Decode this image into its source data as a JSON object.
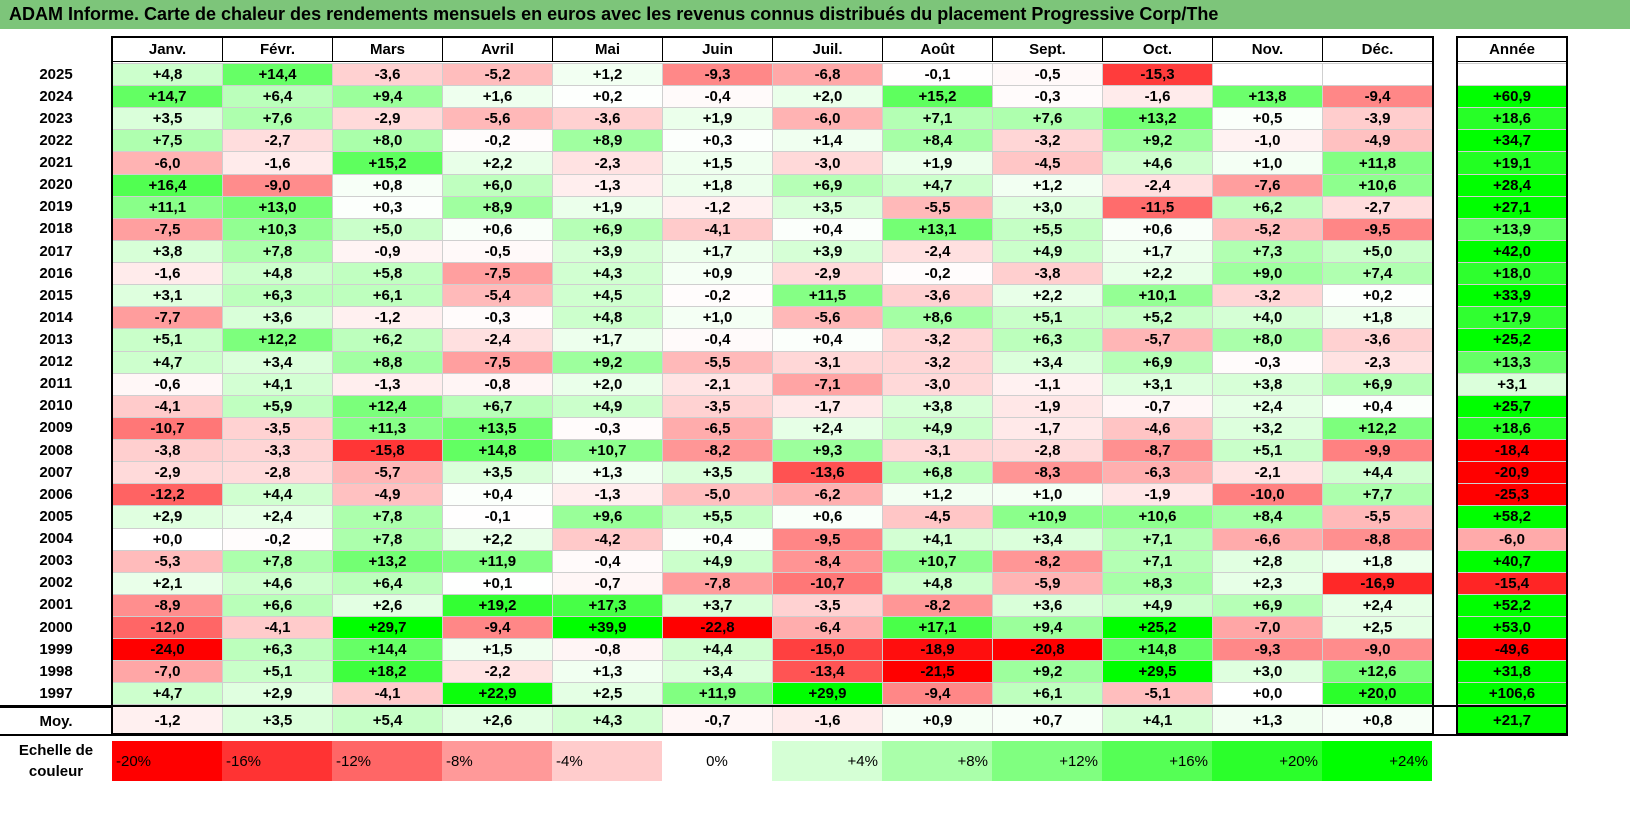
{
  "title": "ADAM Informe. Carte de chaleur des rendements mensuels en euros avec les revenus connus distribués du placement Progressive Corp/The",
  "chart_data": {
    "type": "heatmap",
    "months": [
      "Janv.",
      "Févr.",
      "Mars",
      "Avril",
      "Mai",
      "Juin",
      "Juil.",
      "Août",
      "Sept.",
      "Oct.",
      "Nov.",
      "Déc."
    ],
    "year_header": "Année",
    "rows": [
      {
        "label": "2025",
        "values": [
          "+4,8",
          "+14,4",
          "-3,6",
          "-5,2",
          "+1,2",
          "-9,3",
          "-6,8",
          "-0,1",
          "-0,5",
          "-15,3",
          "",
          ""
        ],
        "year": ""
      },
      {
        "label": "2024",
        "values": [
          "+14,7",
          "+6,4",
          "+9,4",
          "+1,6",
          "+0,2",
          "-0,4",
          "+2,0",
          "+15,2",
          "-0,3",
          "-1,6",
          "+13,8",
          "-9,4"
        ],
        "year": "+60,9"
      },
      {
        "label": "2023",
        "values": [
          "+3,5",
          "+7,6",
          "-2,9",
          "-5,6",
          "-3,6",
          "+1,9",
          "-6,0",
          "+7,1",
          "+7,6",
          "+13,2",
          "+0,5",
          "-3,9"
        ],
        "year": "+18,6"
      },
      {
        "label": "2022",
        "values": [
          "+7,5",
          "-2,7",
          "+8,0",
          "-0,2",
          "+8,9",
          "+0,3",
          "+1,4",
          "+8,4",
          "-3,2",
          "+9,2",
          "-1,0",
          "-4,9"
        ],
        "year": "+34,7"
      },
      {
        "label": "2021",
        "values": [
          "-6,0",
          "-1,6",
          "+15,2",
          "+2,2",
          "-2,3",
          "+1,5",
          "-3,0",
          "+1,9",
          "-4,5",
          "+4,6",
          "+1,0",
          "+11,8"
        ],
        "year": "+19,1"
      },
      {
        "label": "2020",
        "values": [
          "+16,4",
          "-9,0",
          "+0,8",
          "+6,0",
          "-1,3",
          "+1,8",
          "+6,9",
          "+4,7",
          "+1,2",
          "-2,4",
          "-7,6",
          "+10,6"
        ],
        "year": "+28,4"
      },
      {
        "label": "2019",
        "values": [
          "+11,1",
          "+13,0",
          "+0,3",
          "+8,9",
          "+1,9",
          "-1,2",
          "+3,5",
          "-5,5",
          "+3,0",
          "-11,5",
          "+6,2",
          "-2,7"
        ],
        "year": "+27,1"
      },
      {
        "label": "2018",
        "values": [
          "-7,5",
          "+10,3",
          "+5,0",
          "+0,6",
          "+6,9",
          "-4,1",
          "+0,4",
          "+13,1",
          "+5,5",
          "+0,6",
          "-5,2",
          "-9,5"
        ],
        "year": "+13,9"
      },
      {
        "label": "2017",
        "values": [
          "+3,8",
          "+7,8",
          "-0,9",
          "-0,5",
          "+3,9",
          "+1,7",
          "+3,9",
          "-2,4",
          "+4,9",
          "+1,7",
          "+7,3",
          "+5,0"
        ],
        "year": "+42,0"
      },
      {
        "label": "2016",
        "values": [
          "-1,6",
          "+4,8",
          "+5,8",
          "-7,5",
          "+4,3",
          "+0,9",
          "-2,9",
          "-0,2",
          "-3,8",
          "+2,2",
          "+9,0",
          "+7,4"
        ],
        "year": "+18,0"
      },
      {
        "label": "2015",
        "values": [
          "+3,1",
          "+6,3",
          "+6,1",
          "-5,4",
          "+4,5",
          "-0,2",
          "+11,5",
          "-3,6",
          "+2,2",
          "+10,1",
          "-3,2",
          "+0,2"
        ],
        "year": "+33,9"
      },
      {
        "label": "2014",
        "values": [
          "-7,7",
          "+3,6",
          "-1,2",
          "-0,3",
          "+4,8",
          "+1,0",
          "-5,6",
          "+8,6",
          "+5,1",
          "+5,2",
          "+4,0",
          "+1,8"
        ],
        "year": "+17,9"
      },
      {
        "label": "2013",
        "values": [
          "+5,1",
          "+12,2",
          "+6,2",
          "-2,4",
          "+1,7",
          "-0,4",
          "+0,4",
          "-3,2",
          "+6,3",
          "-5,7",
          "+8,0",
          "-3,6"
        ],
        "year": "+25,2"
      },
      {
        "label": "2012",
        "values": [
          "+4,7",
          "+3,4",
          "+8,8",
          "-7,5",
          "+9,2",
          "-5,5",
          "-3,1",
          "-3,2",
          "+3,4",
          "+6,9",
          "-0,3",
          "-2,3"
        ],
        "year": "+13,3"
      },
      {
        "label": "2011",
        "values": [
          "-0,6",
          "+4,1",
          "-1,3",
          "-0,8",
          "+2,0",
          "-2,1",
          "-7,1",
          "-3,0",
          "-1,1",
          "+3,1",
          "+3,8",
          "+6,9"
        ],
        "year": "+3,1"
      },
      {
        "label": "2010",
        "values": [
          "-4,1",
          "+5,9",
          "+12,4",
          "+6,7",
          "+4,9",
          "-3,5",
          "-1,7",
          "+3,8",
          "-1,9",
          "-0,7",
          "+2,4",
          "+0,4"
        ],
        "year": "+25,7"
      },
      {
        "label": "2009",
        "values": [
          "-10,7",
          "-3,5",
          "+11,3",
          "+13,5",
          "-0,3",
          "-6,5",
          "+2,4",
          "+4,9",
          "-1,7",
          "-4,6",
          "+3,2",
          "+12,2"
        ],
        "year": "+18,6"
      },
      {
        "label": "2008",
        "values": [
          "-3,8",
          "-3,3",
          "-15,8",
          "+14,8",
          "+10,7",
          "-8,2",
          "+9,3",
          "-3,1",
          "-2,8",
          "-8,7",
          "+5,1",
          "-9,9"
        ],
        "year": "-18,4"
      },
      {
        "label": "2007",
        "values": [
          "-2,9",
          "-2,8",
          "-5,7",
          "+3,5",
          "+1,3",
          "+3,5",
          "-13,6",
          "+6,8",
          "-8,3",
          "-6,3",
          "-2,1",
          "+4,4"
        ],
        "year": "-20,9"
      },
      {
        "label": "2006",
        "values": [
          "-12,2",
          "+4,4",
          "-4,9",
          "+0,4",
          "-1,3",
          "-5,0",
          "-6,2",
          "+1,2",
          "+1,0",
          "-1,9",
          "-10,0",
          "+7,7"
        ],
        "year": "-25,3"
      },
      {
        "label": "2005",
        "values": [
          "+2,9",
          "+2,4",
          "+7,8",
          "-0,1",
          "+9,6",
          "+5,5",
          "+0,6",
          "-4,5",
          "+10,9",
          "+10,6",
          "+8,4",
          "-5,5"
        ],
        "year": "+58,2"
      },
      {
        "label": "2004",
        "values": [
          "+0,0",
          "-0,2",
          "+7,8",
          "+2,2",
          "-4,2",
          "+0,4",
          "-9,5",
          "+4,1",
          "+3,4",
          "+7,1",
          "-6,6",
          "-8,8"
        ],
        "year": "-6,0"
      },
      {
        "label": "2003",
        "values": [
          "-5,3",
          "+7,8",
          "+13,2",
          "+11,9",
          "-0,4",
          "+4,9",
          "-8,4",
          "+10,7",
          "-8,2",
          "+7,1",
          "+2,8",
          "+1,8"
        ],
        "year": "+40,7"
      },
      {
        "label": "2002",
        "values": [
          "+2,1",
          "+4,6",
          "+6,4",
          "+0,1",
          "-0,7",
          "-7,8",
          "-10,7",
          "+4,8",
          "-5,9",
          "+8,3",
          "+2,3",
          "-16,9"
        ],
        "year": "-15,4"
      },
      {
        "label": "2001",
        "values": [
          "-8,9",
          "+6,6",
          "+2,6",
          "+19,2",
          "+17,3",
          "+3,7",
          "-3,5",
          "-8,2",
          "+3,6",
          "+4,9",
          "+6,9",
          "+2,4"
        ],
        "year": "+52,2"
      },
      {
        "label": "2000",
        "values": [
          "-12,0",
          "-4,1",
          "+29,7",
          "-9,4",
          "+39,9",
          "-22,8",
          "-6,4",
          "+17,1",
          "+9,4",
          "+25,2",
          "-7,0",
          "+2,5"
        ],
        "year": "+53,0"
      },
      {
        "label": "1999",
        "values": [
          "-24,0",
          "+6,3",
          "+14,4",
          "+1,5",
          "-0,8",
          "+4,4",
          "-15,0",
          "-18,9",
          "-20,8",
          "+14,8",
          "-9,3",
          "-9,0"
        ],
        "year": "-49,6"
      },
      {
        "label": "1998",
        "values": [
          "-7,0",
          "+5,1",
          "+18,2",
          "-2,2",
          "+1,3",
          "+3,4",
          "-13,4",
          "-21,5",
          "+9,2",
          "+29,5",
          "+3,0",
          "+12,6"
        ],
        "year": "+31,8"
      },
      {
        "label": "1997",
        "values": [
          "+4,7",
          "+2,9",
          "-4,1",
          "+22,9",
          "+2,5",
          "+11,9",
          "+29,9",
          "-9,4",
          "+6,1",
          "-5,1",
          "+0,0",
          "+20,0"
        ],
        "year": "+106,6"
      }
    ],
    "average": {
      "label": "Moy.",
      "values": [
        "-1,2",
        "+3,5",
        "+5,4",
        "+2,6",
        "+4,3",
        "-0,7",
        "-1,6",
        "+0,9",
        "+0,7",
        "+4,1",
        "+1,3",
        "+0,8"
      ],
      "year": "+21,7"
    },
    "scale": {
      "label": "Echelle de couleur",
      "steps": [
        "-20%",
        "-16%",
        "-12%",
        "-8%",
        "-4%",
        "0%",
        "+4%",
        "+8%",
        "+12%",
        "+16%",
        "+20%",
        "+24%"
      ]
    },
    "colors": {
      "negative_max": "#ff0000",
      "neutral": "#ffffff",
      "positive_max": "#00ff00",
      "title_bg": "#7dc57a"
    }
  }
}
